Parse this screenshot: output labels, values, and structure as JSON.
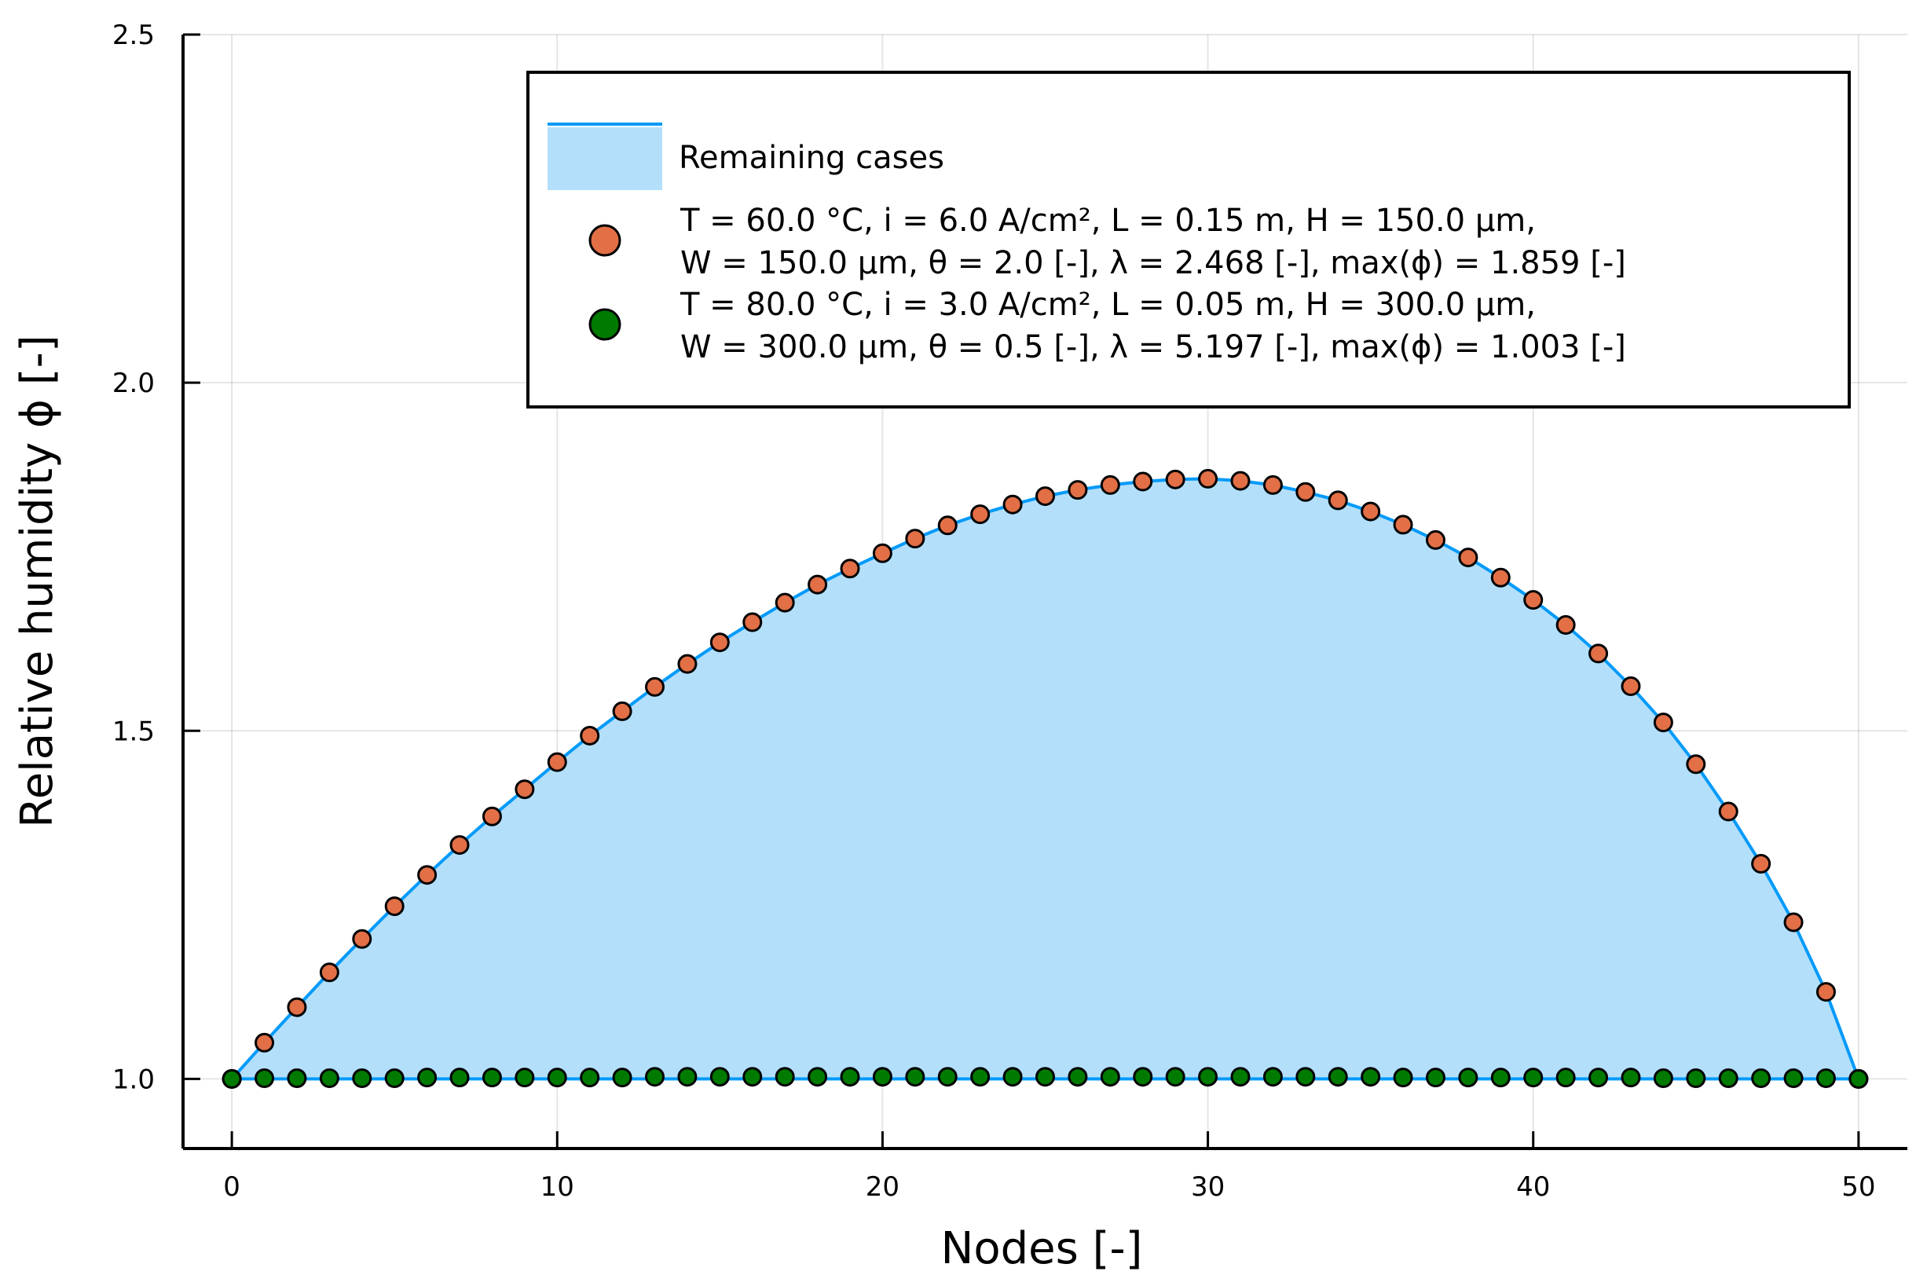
{
  "chart_data": {
    "type": "scatter",
    "xlabel": "Nodes [-]",
    "ylabel": "Relative humidity ϕ [-]",
    "xlim": [
      -1.5,
      51.5
    ],
    "ylim": [
      0.9,
      2.5
    ],
    "x_ticks": [
      0,
      10,
      20,
      30,
      40,
      50
    ],
    "x_tick_labels": [
      "0",
      "10",
      "20",
      "30",
      "40",
      "50"
    ],
    "y_ticks": [
      1.0,
      1.5,
      2.0,
      2.5
    ],
    "y_tick_labels": [
      "1.0",
      "1.5",
      "2.0",
      "2.5"
    ],
    "grid": true,
    "legend_position": "top-right",
    "band": {
      "name": "Remaining cases",
      "color": "#009AFA",
      "fill_color": "#B3DFFB",
      "x": [
        0,
        1,
        2,
        3,
        4,
        5,
        6,
        7,
        8,
        9,
        10,
        11,
        12,
        13,
        14,
        15,
        16,
        17,
        18,
        19,
        20,
        21,
        22,
        23,
        24,
        25,
        26,
        27,
        28,
        29,
        30,
        31,
        32,
        33,
        34,
        35,
        36,
        37,
        38,
        39,
        40,
        41,
        42,
        43,
        44,
        45,
        46,
        47,
        48,
        49,
        50
      ],
      "upper": [
        1.0,
        1.052,
        1.103,
        1.153,
        1.201,
        1.248,
        1.293,
        1.336,
        1.377,
        1.416,
        1.455,
        1.493,
        1.528,
        1.563,
        1.596,
        1.627,
        1.656,
        1.684,
        1.71,
        1.733,
        1.755,
        1.776,
        1.795,
        1.811,
        1.825,
        1.837,
        1.846,
        1.853,
        1.858,
        1.861,
        1.862,
        1.859,
        1.853,
        1.843,
        1.831,
        1.815,
        1.796,
        1.774,
        1.749,
        1.72,
        1.688,
        1.652,
        1.611,
        1.564,
        1.512,
        1.452,
        1.384,
        1.309,
        1.225,
        1.125,
        1.0
      ],
      "lower": [
        1.0,
        1.0,
        1.0,
        1.0,
        1.0,
        1.0,
        1.0,
        1.0,
        1.0,
        1.0,
        1.0,
        1.0,
        1.0,
        1.0,
        1.0,
        1.0,
        1.0,
        1.0,
        1.0,
        1.0,
        1.0,
        1.0,
        1.0,
        1.0,
        1.0,
        1.0,
        1.0,
        1.0,
        1.0,
        1.0,
        1.0,
        1.0,
        1.0,
        1.0,
        1.0,
        1.0,
        1.0,
        1.0,
        1.0,
        1.0,
        1.0,
        1.0,
        1.0,
        1.0,
        1.0,
        1.0,
        1.0,
        1.0,
        1.0,
        1.0,
        1.0
      ]
    },
    "series": [
      {
        "name_line1": "T = 60.0 °C, i = 6.0 A/cm², L = 0.15 m, H = 150.0 µm,",
        "name_line2": "W = 150.0 µm, θ = 2.0 [-], λ = 2.468 [-], max(ϕ) = 1.859 [-]",
        "color": "#E26F46",
        "x": [
          0,
          1,
          2,
          3,
          4,
          5,
          6,
          7,
          8,
          9,
          10,
          11,
          12,
          13,
          14,
          15,
          16,
          17,
          18,
          19,
          20,
          21,
          22,
          23,
          24,
          25,
          26,
          27,
          28,
          29,
          30,
          31,
          32,
          33,
          34,
          35,
          36,
          37,
          38,
          39,
          40,
          41,
          42,
          43,
          44,
          45,
          46,
          47,
          48,
          49,
          50
        ],
        "values": [
          1.0,
          1.052,
          1.103,
          1.153,
          1.201,
          1.248,
          1.293,
          1.336,
          1.377,
          1.416,
          1.455,
          1.493,
          1.528,
          1.563,
          1.596,
          1.627,
          1.656,
          1.684,
          1.71,
          1.733,
          1.755,
          1.776,
          1.795,
          1.811,
          1.825,
          1.837,
          1.846,
          1.853,
          1.858,
          1.861,
          1.862,
          1.859,
          1.853,
          1.843,
          1.831,
          1.815,
          1.796,
          1.774,
          1.749,
          1.72,
          1.688,
          1.652,
          1.611,
          1.564,
          1.512,
          1.452,
          1.384,
          1.309,
          1.225,
          1.125,
          1.0
        ]
      },
      {
        "name_line1": "T = 80.0 °C, i = 3.0 A/cm², L = 0.05 m, H = 300.0 µm,",
        "name_line2": "W = 300.0 µm, θ = 0.5 [-], λ = 5.197 [-], max(ϕ) = 1.003 [-]",
        "color": "#007A00",
        "x": [
          0,
          1,
          2,
          3,
          4,
          5,
          6,
          7,
          8,
          9,
          10,
          11,
          12,
          13,
          14,
          15,
          16,
          17,
          18,
          19,
          20,
          21,
          22,
          23,
          24,
          25,
          26,
          27,
          28,
          29,
          30,
          31,
          32,
          33,
          34,
          35,
          36,
          37,
          38,
          39,
          40,
          41,
          42,
          43,
          44,
          45,
          46,
          47,
          48,
          49,
          50
        ],
        "values": [
          1.0,
          1.001,
          1.001,
          1.001,
          1.001,
          1.001,
          1.002,
          1.002,
          1.002,
          1.002,
          1.002,
          1.002,
          1.002,
          1.003,
          1.003,
          1.003,
          1.003,
          1.003,
          1.003,
          1.003,
          1.003,
          1.003,
          1.003,
          1.003,
          1.003,
          1.003,
          1.003,
          1.003,
          1.003,
          1.003,
          1.003,
          1.003,
          1.003,
          1.003,
          1.003,
          1.003,
          1.002,
          1.002,
          1.002,
          1.002,
          1.002,
          1.002,
          1.002,
          1.002,
          1.001,
          1.001,
          1.001,
          1.001,
          1.001,
          1.001,
          1.0
        ]
      }
    ]
  }
}
